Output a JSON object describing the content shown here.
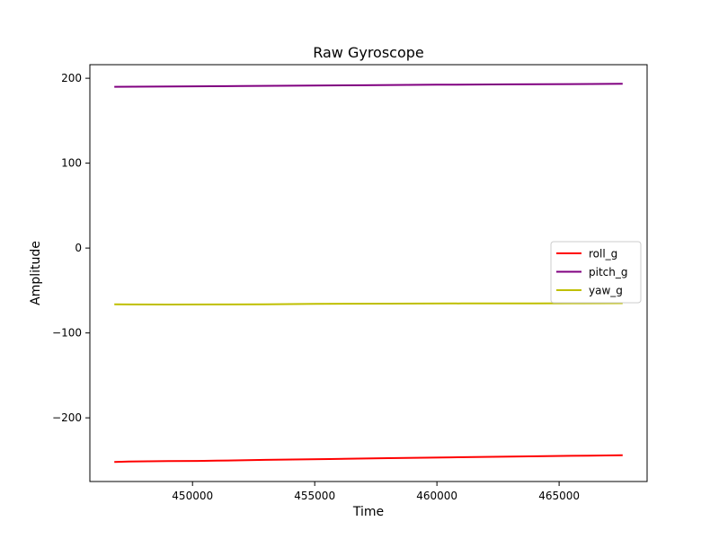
{
  "chart_data": {
    "type": "line",
    "title": "Raw Gyroscope",
    "xlabel": "Time",
    "ylabel": "Amplitude",
    "xlim": [
      445800,
      468600
    ],
    "ylim": [
      -275,
      216
    ],
    "x_ticks": [
      450000,
      455000,
      460000,
      465000
    ],
    "x_tick_labels": [
      "450000",
      "455000",
      "460000",
      "465000"
    ],
    "y_ticks": [
      200,
      100,
      0,
      -100,
      -200
    ],
    "y_tick_labels": [
      "200",
      "100",
      "0",
      "−100",
      "−200"
    ],
    "grid": false,
    "legend_position": "center-right",
    "series": [
      {
        "name": "roll_g",
        "color": "#ff0000",
        "x": [
          446800,
          447400,
          449000,
          450200,
          451000,
          453000,
          455600,
          458000,
          460600,
          463400,
          466200,
          467600
        ],
        "y": [
          -252,
          -251.5,
          -251,
          -250.8,
          -250.5,
          -249.5,
          -248.5,
          -247.5,
          -246.5,
          -245.5,
          -244.5,
          -244
        ]
      },
      {
        "name": "pitch_g",
        "color": "#800080",
        "x": [
          446800,
          450000,
          452000,
          454800,
          457000,
          460000,
          463000,
          466300,
          467600
        ],
        "y": [
          190,
          190.5,
          190.8,
          191.3,
          191.8,
          192.4,
          192.8,
          193.3,
          193.5
        ]
      },
      {
        "name": "yaw_g",
        "color": "#bfbf00",
        "x": [
          446800,
          447400,
          449000,
          451000,
          453000,
          455000,
          458000,
          461000,
          464000,
          466000,
          467600
        ],
        "y": [
          -66.2,
          -66.4,
          -66.5,
          -66.4,
          -66.3,
          -65.8,
          -65.5,
          -65.3,
          -65.2,
          -65.1,
          -65
        ]
      }
    ]
  }
}
